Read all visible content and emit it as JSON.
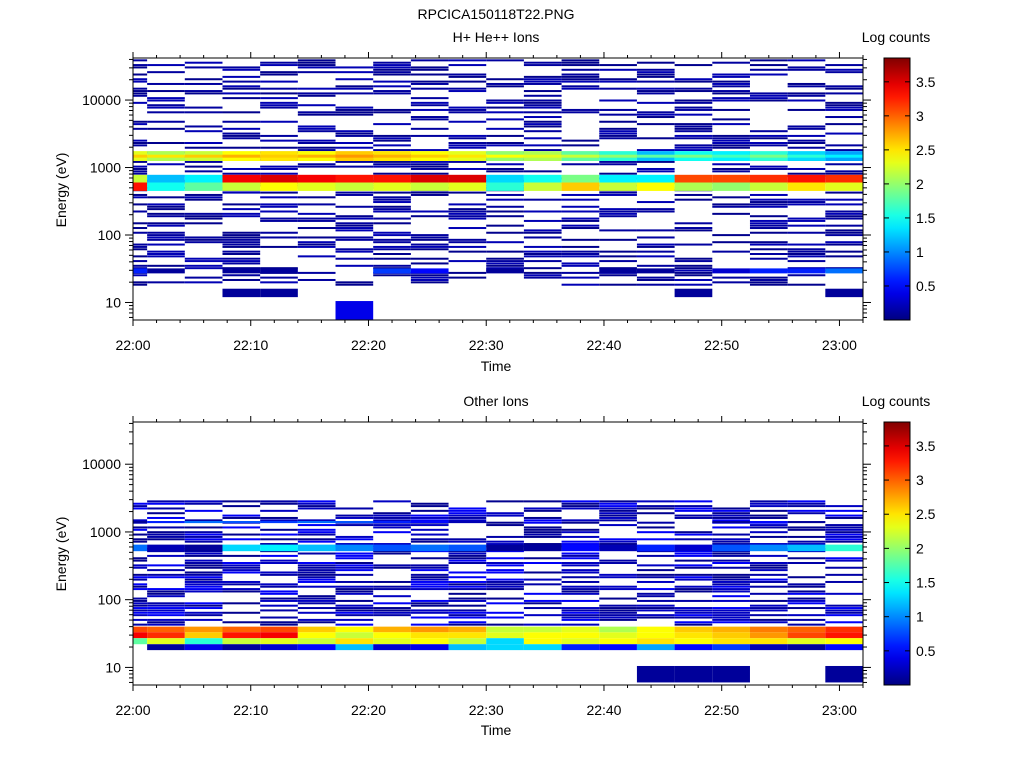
{
  "figure_title": "RPCICA150118T22.PNG",
  "chart_data": [
    {
      "type": "heatmap",
      "title": "H+ He++ Ions",
      "xlabel": "Time",
      "ylabel": "Energy (eV)",
      "colorbar_label": "Log counts",
      "colorbar_ticks": [
        "0.5",
        "1",
        "1.5",
        "2",
        "2.5",
        "3",
        "3.5"
      ],
      "colorbar_range": [
        0,
        3.85
      ],
      "colormap": "jet",
      "x_tick_labels": [
        "22:00",
        "22:10",
        "22:20",
        "22:30",
        "22:40",
        "22:50",
        "23:00"
      ],
      "x_ticks_minutes": [
        0,
        10,
        20,
        30,
        40,
        50,
        60
      ],
      "x_range_minutes": [
        0,
        62
      ],
      "y_tick_labels": [
        "10",
        "100",
        "1000",
        "10000"
      ],
      "y_ticks": [
        10,
        100,
        1000,
        10000
      ],
      "y_scale": "log",
      "y_range": [
        5.5,
        42000
      ],
      "time_columns_minutes": [
        1.2,
        4.4,
        7.6,
        10.8,
        14.0,
        17.2,
        20.4,
        23.6,
        26.8,
        30.0,
        33.2,
        36.4,
        39.6,
        42.8,
        46.0,
        49.2,
        52.4,
        55.6,
        58.8,
        62.0
      ],
      "bands": [
        {
          "e_lo": 1250,
          "e_hi": 1750,
          "values": [
            2.3,
            2.1,
            2.2,
            2.4,
            2.5,
            2.4,
            2.6,
            2.5,
            2.4,
            2.3,
            2.0,
            2.1,
            1.8,
            1.6,
            1.2,
            1.5,
            1.4,
            1.6,
            1.3,
            1.1
          ]
        },
        {
          "e_lo": 1400,
          "e_hi": 1550,
          "values": [
            2.6,
            2.5,
            2.6,
            2.7,
            2.6,
            2.7,
            2.8,
            2.7,
            2.6,
            2.5,
            2.4,
            2.3,
            2.2,
            2.0,
            1.8,
            1.9,
            1.7,
            1.9,
            1.6,
            1.4
          ]
        },
        {
          "e_lo": 570,
          "e_hi": 780,
          "values": [
            2.2,
            1.2,
            1.4,
            3.4,
            3.5,
            3.4,
            3.3,
            3.3,
            3.5,
            3.5,
            1.3,
            1.5,
            1.9,
            1.4,
            1.4,
            3.1,
            3.1,
            3.2,
            3.3,
            3.2
          ]
        },
        {
          "e_lo": 450,
          "e_hi": 600,
          "values": [
            3.3,
            1.5,
            1.8,
            2.2,
            2.4,
            2.3,
            2.2,
            2.3,
            2.2,
            2.3,
            1.6,
            2.2,
            2.6,
            2.2,
            2.4,
            2.1,
            2.0,
            2.2,
            2.5,
            2.3
          ]
        },
        {
          "e_lo": 27,
          "e_hi": 32,
          "values": [
            0.6,
            0.1,
            0.0,
            0.1,
            0.1,
            0.0,
            0.0,
            0.7,
            0.5,
            0.0,
            0.1,
            0.0,
            0.0,
            0.1,
            0.1,
            0.0,
            0.3,
            0.6,
            0.6,
            0.9
          ]
        },
        {
          "e_lo": 12,
          "e_hi": 16,
          "values": [
            0.0,
            0.0,
            0.0,
            0.1,
            0.1,
            0.0,
            0.0,
            0.0,
            0.0,
            0.0,
            0.0,
            0.0,
            0.0,
            0.0,
            0.0,
            0.1,
            0.0,
            0.0,
            0.0,
            0.1
          ]
        },
        {
          "e_lo": 5.6,
          "e_hi": 10.5,
          "values": [
            0.0,
            0.0,
            0.0,
            0.0,
            0.0,
            0.0,
            0.4,
            0.0,
            0.0,
            0.0,
            0.0,
            0.0,
            0.0,
            0.0,
            0.0,
            0.0,
            0.0,
            0.0,
            0.0,
            0.0
          ]
        }
      ],
      "sparse": {
        "e_min": 18,
        "e_max": 40000,
        "density": 0.42,
        "seed": 11,
        "levels": [
          0.05,
          0.12,
          0.2
        ]
      }
    },
    {
      "type": "heatmap",
      "title": "Other Ions",
      "xlabel": "Time",
      "ylabel": "Energy (eV)",
      "colorbar_label": "Log counts",
      "colorbar_ticks": [
        "0.5",
        "1",
        "1.5",
        "2",
        "2.5",
        "3",
        "3.5"
      ],
      "colorbar_range": [
        0,
        3.85
      ],
      "colormap": "jet",
      "x_tick_labels": [
        "22:00",
        "22:10",
        "22:20",
        "22:30",
        "22:40",
        "22:50",
        "23:00"
      ],
      "x_ticks_minutes": [
        0,
        10,
        20,
        30,
        40,
        50,
        60
      ],
      "x_range_minutes": [
        0,
        62
      ],
      "y_tick_labels": [
        "10",
        "100",
        "1000",
        "10000"
      ],
      "y_ticks": [
        10,
        100,
        1000,
        10000
      ],
      "y_scale": "log",
      "y_range": [
        5.5,
        42000
      ],
      "time_columns_minutes": [
        1.2,
        4.4,
        7.6,
        10.8,
        14.0,
        17.2,
        20.4,
        23.6,
        26.8,
        30.0,
        33.2,
        36.4,
        39.6,
        42.8,
        46.0,
        49.2,
        52.4,
        55.6,
        58.8,
        62.0
      ],
      "bands": [
        {
          "e_lo": 33,
          "e_hi": 40,
          "values": [
            3.1,
            3.0,
            2.8,
            3.0,
            3.1,
            2.6,
            2.4,
            2.7,
            2.8,
            2.7,
            2.2,
            2.2,
            2.3,
            2.1,
            2.4,
            2.6,
            2.7,
            2.9,
            3.0,
            3.2
          ]
        },
        {
          "e_lo": 27,
          "e_hi": 33,
          "values": [
            3.4,
            3.2,
            2.6,
            3.3,
            3.4,
            2.4,
            2.2,
            2.4,
            2.5,
            2.5,
            2.3,
            2.4,
            2.4,
            2.3,
            2.4,
            2.5,
            2.6,
            2.8,
            3.1,
            3.3
          ]
        },
        {
          "e_lo": 22,
          "e_hi": 27,
          "values": [
            1.8,
            2.3,
            1.6,
            2.2,
            2.3,
            2.2,
            2.5,
            2.3,
            2.4,
            2.2,
            1.3,
            2.4,
            2.3,
            2.4,
            2.5,
            2.4,
            2.5,
            2.5,
            2.3,
            2.4
          ]
        },
        {
          "e_lo": 18,
          "e_hi": 22,
          "values": [
            0.0,
            0.1,
            0.4,
            0.1,
            0.3,
            0.5,
            1.2,
            0.3,
            0.4,
            1.2,
            1.3,
            1.3,
            0.6,
            0.5,
            1.1,
            0.5,
            0.7,
            0.2,
            0.1,
            0.5
          ]
        },
        {
          "e_lo": 6,
          "e_hi": 10.5,
          "values": [
            0.0,
            0.0,
            0.0,
            0.0,
            0.0,
            0.0,
            0.0,
            0.0,
            0.0,
            0.0,
            0.0,
            0.0,
            0.0,
            0.0,
            0.1,
            0.1,
            0.1,
            0.0,
            0.0,
            0.1
          ]
        },
        {
          "e_lo": 520,
          "e_hi": 650,
          "values": [
            0.9,
            0.2,
            0.1,
            1.3,
            1.4,
            1.2,
            1.0,
            0.8,
            0.9,
            0.8,
            0.1,
            0.1,
            0.5,
            0.2,
            0.6,
            0.3,
            0.8,
            1.0,
            1.2,
            1.6
          ]
        },
        {
          "e_lo": 1350,
          "e_hi": 1450,
          "values": [
            0.1,
            0.6,
            0.9,
            0.8,
            0.7,
            0.9,
            0.8,
            0.6,
            0.5,
            0.2,
            0.0,
            0.0,
            0.0,
            0.0,
            0.0,
            0.0,
            0.1,
            0.5,
            0.1,
            0.0
          ]
        }
      ],
      "sparse": {
        "e_min": 42,
        "e_max": 3000,
        "density": 0.55,
        "seed": 23,
        "levels": [
          0.06,
          0.15,
          0.25,
          0.45
        ]
      }
    }
  ]
}
